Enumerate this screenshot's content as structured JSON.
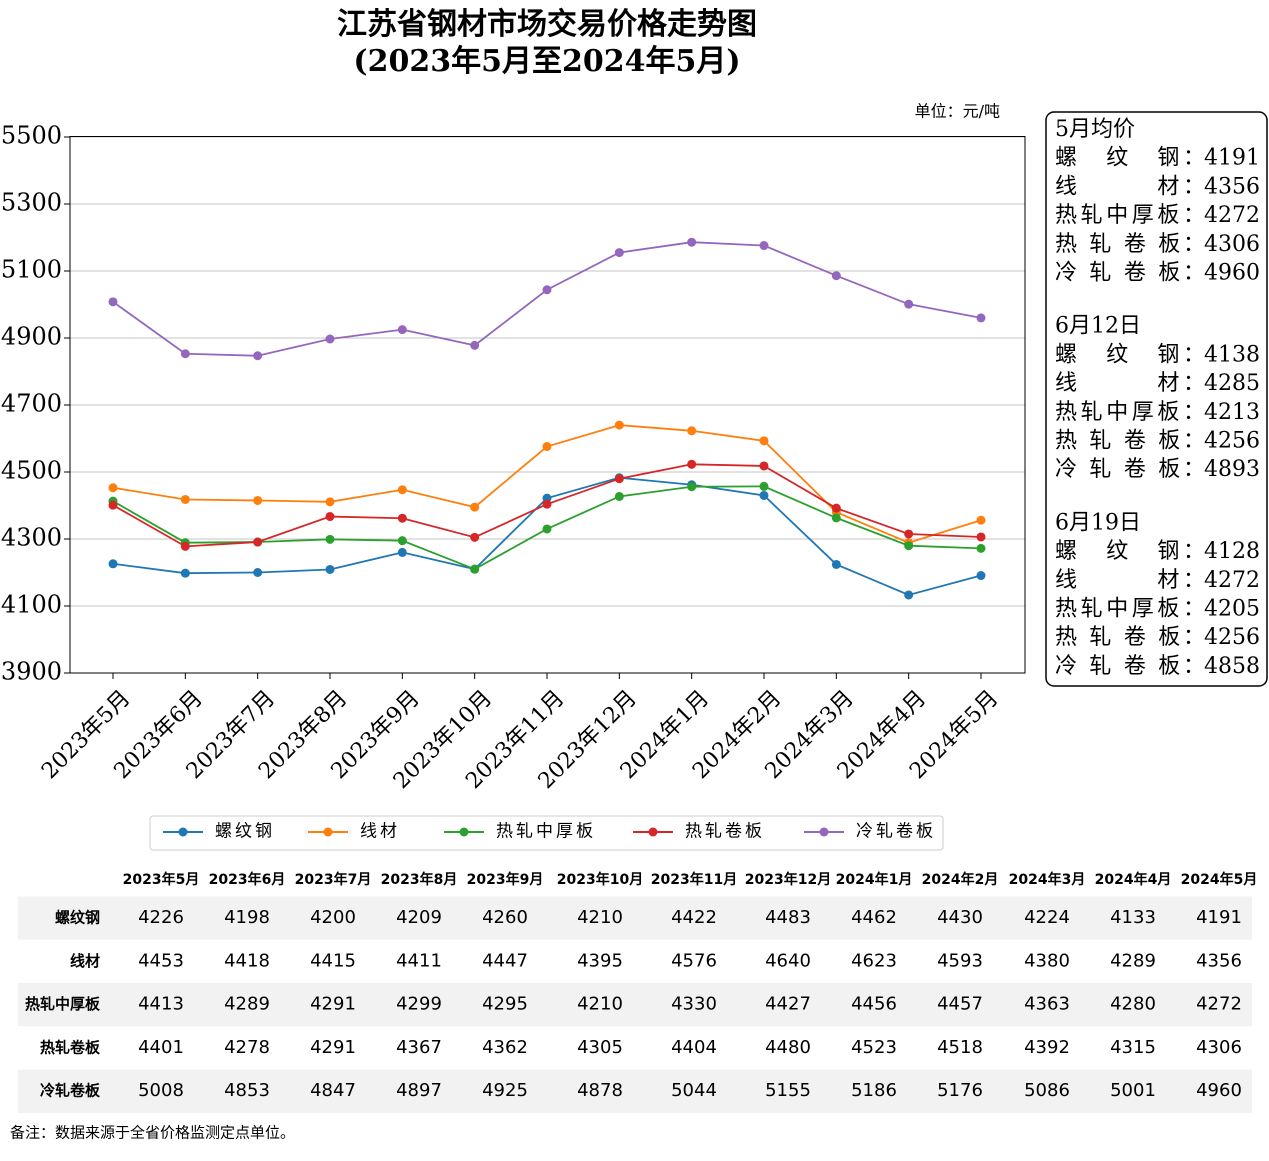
{
  "chart_data": {
    "type": "line",
    "title": "江苏省钢材市场交易价格走势图",
    "subtitle": "(2023年5月至2024年5月)",
    "unit_label": "单位：元/吨",
    "categories": [
      "2023年5月",
      "2023年6月",
      "2023年7月",
      "2023年8月",
      "2023年9月",
      "2023年10月",
      "2023年11月",
      "2023年12月",
      "2024年1月",
      "2024年2月",
      "2024年3月",
      "2024年4月",
      "2024年5月"
    ],
    "series": [
      {
        "name": "螺纹钢",
        "color": "#1f77b4",
        "values": [
          4226,
          4198,
          4200,
          4209,
          4260,
          4210,
          4422,
          4483,
          4462,
          4430,
          4224,
          4133,
          4191
        ]
      },
      {
        "name": "线材",
        "color": "#ff7f0e",
        "values": [
          4453,
          4418,
          4415,
          4411,
          4447,
          4395,
          4576,
          4640,
          4623,
          4593,
          4380,
          4289,
          4356
        ]
      },
      {
        "name": "热轧中厚板",
        "color": "#2ca02c",
        "values": [
          4413,
          4289,
          4291,
          4299,
          4295,
          4210,
          4330,
          4427,
          4456,
          4457,
          4363,
          4280,
          4272
        ]
      },
      {
        "name": "热轧卷板",
        "color": "#d62728",
        "values": [
          4401,
          4278,
          4291,
          4367,
          4362,
          4305,
          4404,
          4480,
          4523,
          4518,
          4392,
          4315,
          4306
        ]
      },
      {
        "name": "冷轧卷板",
        "color": "#9467bd",
        "values": [
          5008,
          4853,
          4847,
          4897,
          4925,
          4878,
          5044,
          5155,
          5186,
          5176,
          5086,
          5001,
          4960
        ]
      }
    ],
    "ylim": [
      3900,
      5500
    ],
    "yticks": [
      3900,
      4100,
      4300,
      4500,
      4700,
      4900,
      5100,
      5300,
      5500
    ],
    "grid": true,
    "info_box": [
      {
        "heading": "5月均价",
        "items": [
          {
            "label": "螺　纹　钢：",
            "value": 4191
          },
          {
            "label": "线　　　材：",
            "value": 4356
          },
          {
            "label": "热轧中厚板：",
            "value": 4272
          },
          {
            "label": "热 轧 卷 板：",
            "value": 4306
          },
          {
            "label": "冷 轧 卷 板：",
            "value": 4960
          }
        ]
      },
      {
        "heading": "6月12日",
        "items": [
          {
            "label": "螺　纹　钢：",
            "value": 4138
          },
          {
            "label": "线　　　材：",
            "value": 4285
          },
          {
            "label": "热轧中厚板：",
            "value": 4213
          },
          {
            "label": "热 轧 卷 板：",
            "value": 4256
          },
          {
            "label": "冷 轧 卷 板：",
            "value": 4893
          }
        ]
      },
      {
        "heading": "6月19日",
        "items": [
          {
            "label": "螺　纹　钢：",
            "value": 4128
          },
          {
            "label": "线　　　材：",
            "value": 4272
          },
          {
            "label": "热轧中厚板：",
            "value": 4205
          },
          {
            "label": "热 轧 卷 板：",
            "value": 4256
          },
          {
            "label": "冷 轧 卷 板：",
            "value": 4858
          }
        ]
      }
    ],
    "footnote": "备注：数据来源于全省价格监测定点单位。"
  }
}
